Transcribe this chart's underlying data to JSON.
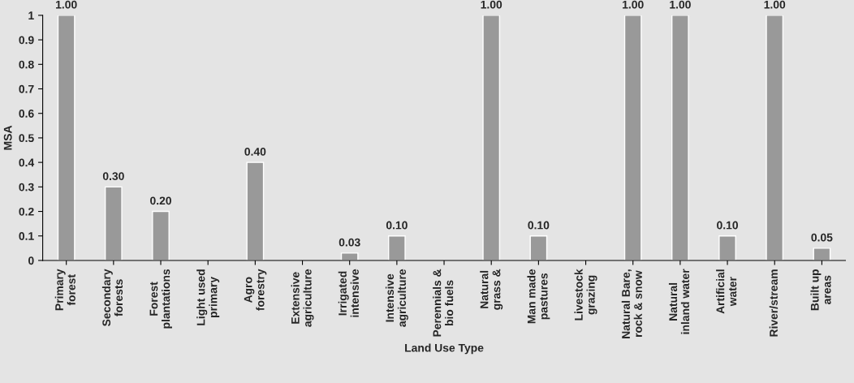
{
  "chart_data": {
    "type": "bar",
    "xlabel": "Land Use Type",
    "ylabel": "MSA",
    "categories": [
      "Primary\nforest",
      "Secondary\nforests",
      "Forest\nplantations",
      "Light used\nprimary",
      "Agro\nforestry",
      "Extensive\nagriculture",
      "Irrigated\nintensive",
      "Intensive\nagriculture",
      "Perennials &\nbio fuels",
      "Natural\ngrass &",
      "Man made\npastures",
      "Livestock\ngrazing",
      "Natural Bare,\nrock & snow",
      "Natural\ninland water",
      "Artificial\nwater",
      "River/stream",
      "Built up\nareas"
    ],
    "values": [
      1,
      0.3,
      0.2,
      null,
      0.4,
      null,
      0.03,
      0.1,
      null,
      1,
      0.1,
      null,
      1,
      1,
      0.1,
      1,
      0.05
    ],
    "value_labels": [
      "1.00",
      "0.30",
      "0.20",
      null,
      "0.40",
      null,
      "0.03",
      "0.10",
      null,
      "1.00",
      "0.10",
      null,
      "1.00",
      "1.00",
      "0.10",
      "1.00",
      "0.05"
    ],
    "color": "#999999",
    "ylim": [
      0,
      1
    ],
    "yticks": [
      0,
      0.1,
      0.2,
      0.3,
      0.4,
      0.5,
      0.6,
      0.7,
      0.8,
      0.9,
      1
    ],
    "grid": false,
    "legend": false
  }
}
